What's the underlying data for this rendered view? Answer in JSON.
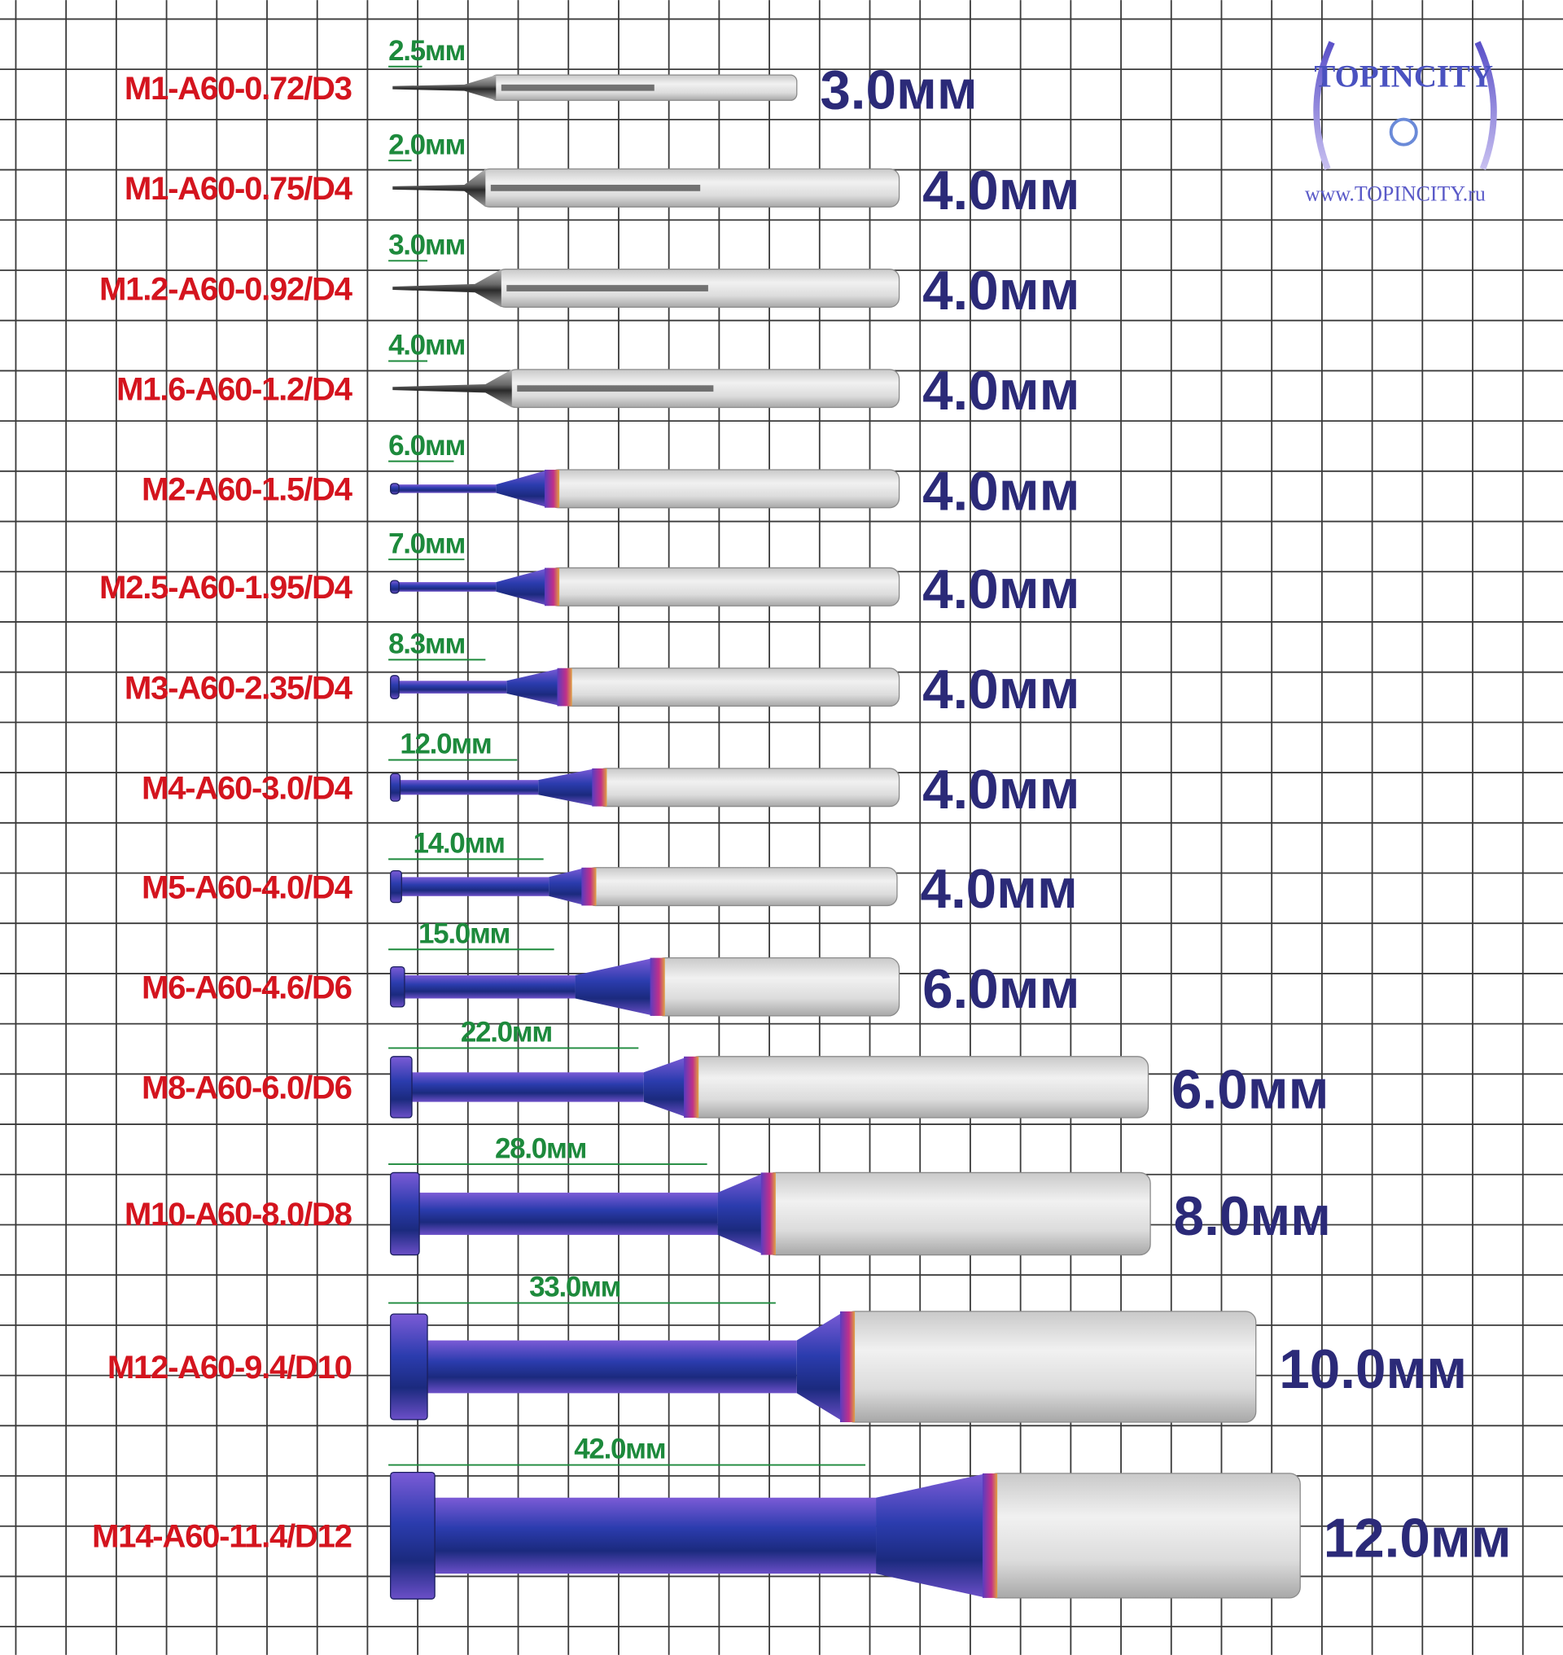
{
  "logo": {
    "brand": "TOPINCITY",
    "url": "www.TOPINCITY.ru"
  },
  "items": [
    {
      "label": "M1-A60-0.72/D3",
      "cut_length": "2.5мм",
      "diameter": "3.0мм"
    },
    {
      "label": "M1-A60-0.75/D4",
      "cut_length": "2.0мм",
      "diameter": "4.0мм"
    },
    {
      "label": "M1.2-A60-0.92/D4",
      "cut_length": "3.0мм",
      "diameter": "4.0мм"
    },
    {
      "label": "M1.6-A60-1.2/D4",
      "cut_length": "4.0мм",
      "diameter": "4.0мм"
    },
    {
      "label": "M2-A60-1.5/D4",
      "cut_length": "6.0мм",
      "diameter": "4.0мм"
    },
    {
      "label": "M2.5-A60-1.95/D4",
      "cut_length": "7.0мм",
      "diameter": "4.0мм"
    },
    {
      "label": "M3-A60-2.35/D4",
      "cut_length": "8.3мм",
      "diameter": "4.0мм"
    },
    {
      "label": "M4-A60-3.0/D4",
      "cut_length": "12.0мм",
      "diameter": "4.0мм"
    },
    {
      "label": "M5-A60-4.0/D4",
      "cut_length": "14.0мм",
      "diameter": "4.0мм"
    },
    {
      "label": "M6-A60-4.6/D6",
      "cut_length": "15.0мм",
      "diameter": "6.0мм"
    },
    {
      "label": "M8-A60-6.0/D6",
      "cut_length": "22.0мм",
      "diameter": "6.0мм"
    },
    {
      "label": "M10-A60-8.0/D8",
      "cut_length": "28.0мм",
      "diameter": "8.0мм"
    },
    {
      "label": "M12-A60-9.4/D10",
      "cut_length": "33.0мм",
      "diameter": "10.0мм"
    },
    {
      "label": "M14-A60-11.4/D12",
      "cut_length": "42.0мм",
      "diameter": "12.0мм"
    }
  ]
}
